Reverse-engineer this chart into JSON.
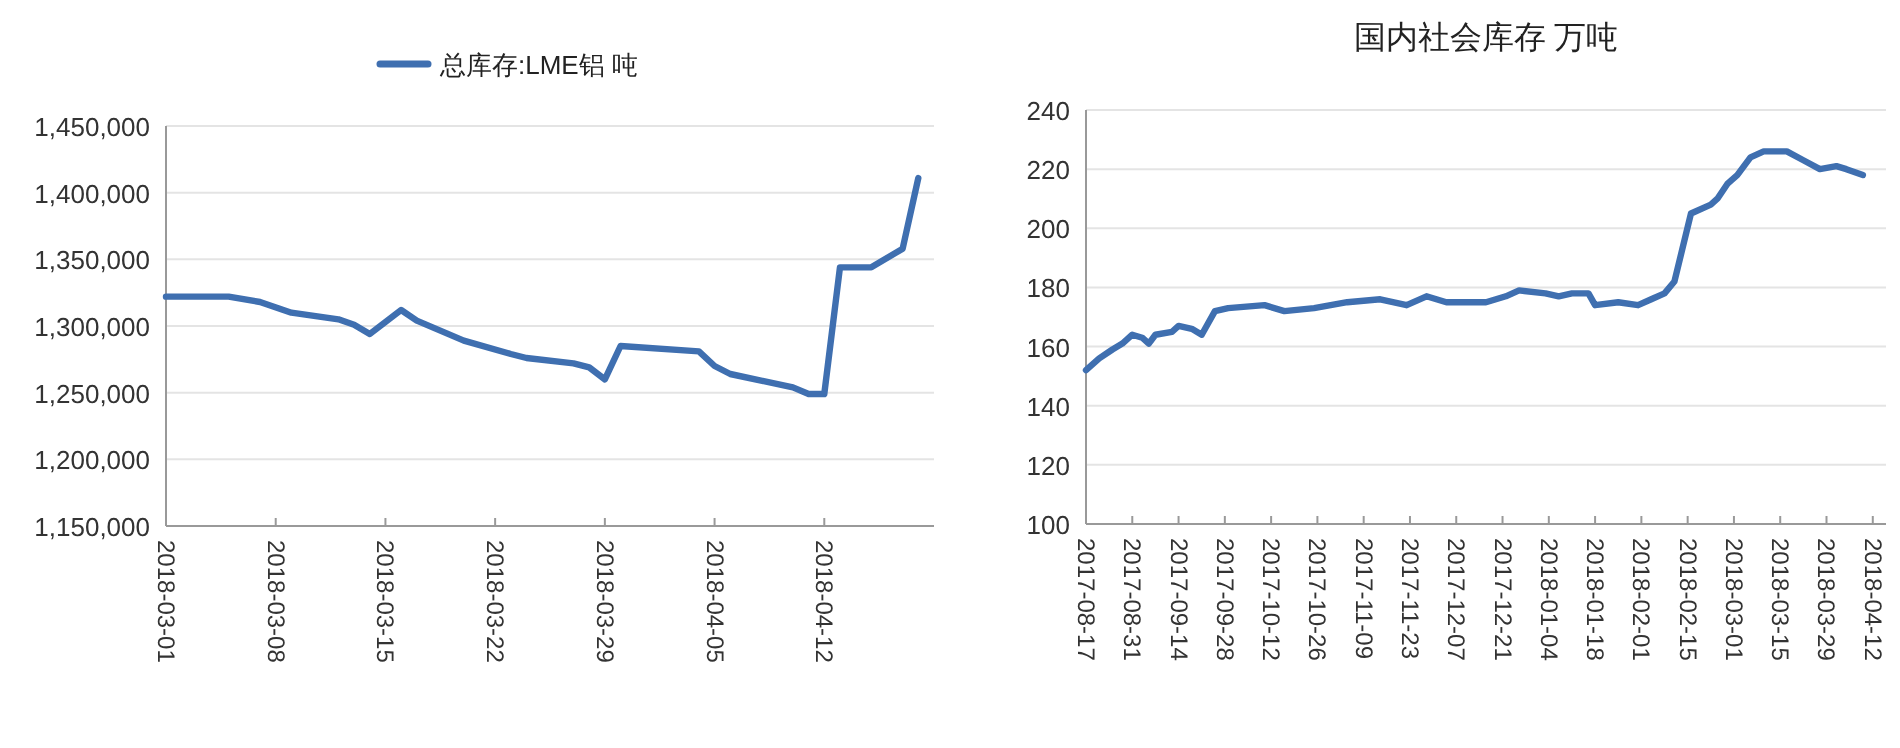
{
  "chart_data": [
    {
      "type": "line",
      "legend": "top",
      "grid": "y",
      "line_style": "solid",
      "x": [
        "2018-03-01",
        "2018-03-05",
        "2018-03-07",
        "2018-03-09",
        "2018-03-12",
        "2018-03-13",
        "2018-03-14",
        "2018-03-16",
        "2018-03-17",
        "2018-03-20",
        "2018-03-23",
        "2018-03-24",
        "2018-03-27",
        "2018-03-28",
        "2018-03-29",
        "2018-03-30",
        "2018-04-04",
        "2018-04-05",
        "2018-04-06",
        "2018-04-10",
        "2018-04-11",
        "2018-04-12",
        "2018-04-13",
        "2018-04-15",
        "2018-04-17",
        "2018-04-18"
      ],
      "series": [
        {
          "name": "总库存:LME铝 吨",
          "color": "#3f6fb0",
          "values": [
            1322000,
            1322000,
            1318000,
            1310000,
            1305000,
            1301000,
            1294000,
            1312000,
            1304000,
            1289000,
            1279000,
            1276000,
            1272000,
            1269000,
            1260000,
            1285000,
            1281000,
            1270000,
            1264000,
            1254000,
            1249000,
            1249000,
            1344000,
            1344000,
            1358000,
            1411000
          ]
        }
      ],
      "xlim": [
        "2018-03-01",
        "2018-04-19"
      ],
      "xticks": [
        "2018-03-01",
        "2018-03-08",
        "2018-03-15",
        "2018-03-22",
        "2018-03-29",
        "2018-04-05",
        "2018-04-12"
      ],
      "ylim": [
        1150000,
        1450000
      ],
      "yticks": [
        {
          "value": 1150000,
          "label": "1,150,000"
        },
        {
          "value": 1200000,
          "label": "1,200,000"
        },
        {
          "value": 1250000,
          "label": "1,250,000"
        },
        {
          "value": 1300000,
          "label": "1,300,000"
        },
        {
          "value": 1350000,
          "label": "1,350,000"
        },
        {
          "value": 1400000,
          "label": "1,400,000"
        },
        {
          "value": 1450000,
          "label": "1,450,000"
        }
      ]
    },
    {
      "type": "line",
      "title": "国内社会库存   万吨",
      "grid": "y",
      "line_style": "solid",
      "x": [
        "2017-08-17",
        "2017-08-21",
        "2017-08-25",
        "2017-08-28",
        "2017-08-31",
        "2017-09-03",
        "2017-09-05",
        "2017-09-07",
        "2017-09-12",
        "2017-09-14",
        "2017-09-18",
        "2017-09-21",
        "2017-09-25",
        "2017-09-29",
        "2017-10-10",
        "2017-10-16",
        "2017-10-25",
        "2017-11-04",
        "2017-11-14",
        "2017-11-22",
        "2017-11-28",
        "2017-12-04",
        "2017-12-16",
        "2017-12-22",
        "2017-12-26",
        "2018-01-03",
        "2018-01-07",
        "2018-01-11",
        "2018-01-16",
        "2018-01-18",
        "2018-01-25",
        "2018-01-31",
        "2018-02-04",
        "2018-02-08",
        "2018-02-11",
        "2018-02-16",
        "2018-02-22",
        "2018-02-24",
        "2018-02-27",
        "2018-03-02",
        "2018-03-06",
        "2018-03-10",
        "2018-03-17",
        "2018-03-22",
        "2018-03-27",
        "2018-04-01",
        "2018-04-04",
        "2018-04-09"
      ],
      "series": [
        {
          "color": "#3f6fb0",
          "values": [
            152,
            156,
            159,
            161,
            164,
            163,
            161,
            164,
            165,
            167,
            166,
            164,
            172,
            173,
            174,
            172,
            173,
            175,
            176,
            174,
            177,
            175,
            175,
            177,
            179,
            178,
            177,
            178,
            178,
            174,
            175,
            174,
            176,
            178,
            182,
            205,
            208,
            210,
            215,
            218,
            224,
            226,
            226,
            223,
            220,
            221,
            220,
            218
          ]
        }
      ],
      "xlim": [
        "2017-08-17",
        "2018-04-16"
      ],
      "xticks": [
        "2017-08-17",
        "2017-08-31",
        "2017-09-14",
        "2017-09-28",
        "2017-10-12",
        "2017-10-26",
        "2017-11-09",
        "2017-11-23",
        "2017-12-07",
        "2017-12-21",
        "2018-01-04",
        "2018-01-18",
        "2018-02-01",
        "2018-02-15",
        "2018-03-01",
        "2018-03-15",
        "2018-03-29",
        "2018-04-12"
      ],
      "ylim": [
        100,
        240
      ],
      "yticks": [
        100,
        120,
        140,
        160,
        180,
        200,
        220,
        240
      ]
    }
  ]
}
